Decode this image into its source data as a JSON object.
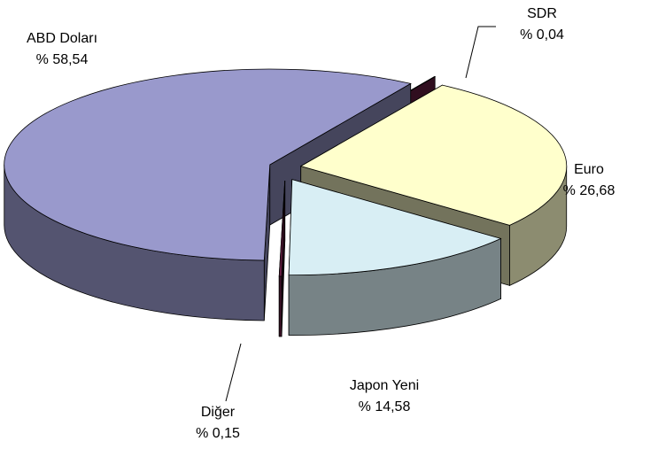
{
  "chart_data": {
    "type": "pie3d",
    "categories": [
      "SDR",
      "Euro",
      "Japon Yeni",
      "Diğer",
      "ABD Doları"
    ],
    "values": [
      0.04,
      26.68,
      14.58,
      0.15,
      58.54
    ],
    "value_labels": [
      "% 0,04",
      "% 26,68",
      "% 14,58",
      "% 0,15",
      "% 58,54"
    ],
    "colors": [
      "#6b1f45",
      "#ffffcc",
      "#d8eef4",
      "#6b1f45",
      "#9999cc"
    ]
  }
}
